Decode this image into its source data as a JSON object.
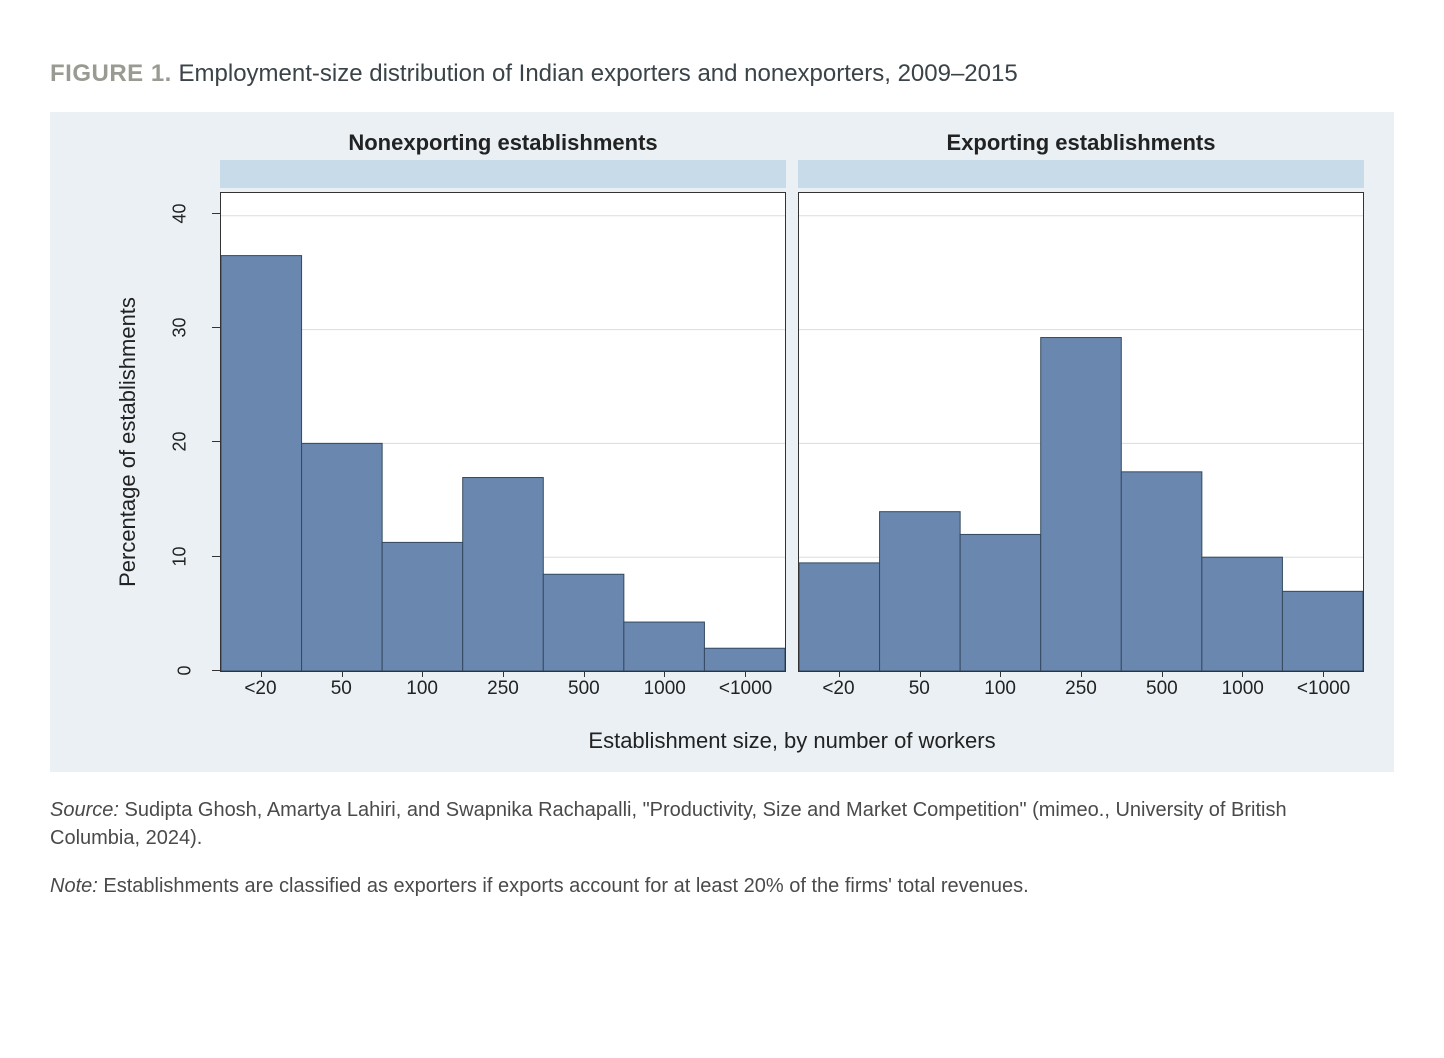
{
  "figure": {
    "label": "FIGURE 1.",
    "title": "Employment-size distribution of Indian exporters and nonexporters, 2009–2015"
  },
  "chart": {
    "type": "bar",
    "background_color": "#eaf0f4",
    "plot_background": "#ffffff",
    "grid_color": "#d8dde1",
    "bar_fill": "#6a87af",
    "bar_stroke": "#34495e",
    "title_bar_color": "#c8dbe8",
    "y_axis": {
      "title": "Percentage of establishments",
      "min": 0,
      "max": 42,
      "ticks": [
        0,
        10,
        20,
        30,
        40
      ]
    },
    "x_axis": {
      "title": "Establishment size, by number of workers",
      "categories": [
        "<20",
        "50",
        "100",
        "250",
        "500",
        "1000",
        "<1000"
      ]
    },
    "panels": [
      {
        "title": "Nonexporting establishments",
        "values": [
          36.5,
          20,
          11.3,
          17,
          8.5,
          4.3,
          2
        ]
      },
      {
        "title": "Exporting establishments",
        "values": [
          9.5,
          14,
          12,
          29.3,
          17.5,
          10,
          7
        ]
      }
    ],
    "bar_width_ratio": 1.0,
    "label_fontsize": 19,
    "title_fontsize": 22
  },
  "captions": {
    "source_lead": "Source:",
    "source_text": " Sudipta Ghosh, Amartya Lahiri, and Swapnika Rachapalli, \"Productivity, Size and Market Competition\" (mimeo., University of British Columbia, 2024).",
    "note_lead": "Note:",
    "note_text": " Establishments are classified as exporters if exports account for at least 20% of the firms' total revenues."
  }
}
